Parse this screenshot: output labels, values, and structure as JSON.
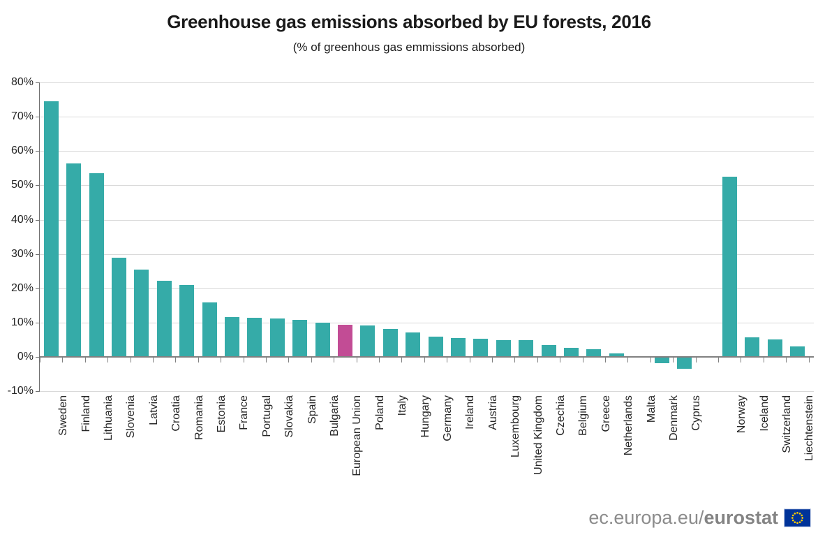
{
  "title": "Greenhouse gas emissions absorbed by EU forests, 2016",
  "subtitle": "(% of greenhous gas emmissions absorbed)",
  "footer": {
    "url_regular": "ec.europa.eu/",
    "url_bold": "eurostat",
    "flag_icon": "eu-flag-icon"
  },
  "colors": {
    "bar": "#35aba8",
    "highlight": "#c24c95",
    "grid": "#d9d9d9",
    "axis": "#808080",
    "text": "#262626",
    "footer_text": "#8c8c8c",
    "flag_blue": "#003399",
    "flag_star": "#ffcc00"
  },
  "chart_data": {
    "type": "bar",
    "title": "Greenhouse gas emissions absorbed by EU forests, 2016",
    "subtitle": "(% of greenhous gas emmissions absorbed)",
    "xlabel": "",
    "ylabel": "% of greenhous gas emmissions absorbed",
    "ylim": [
      -10,
      80
    ],
    "ytick_step": 10,
    "ytick_labels": [
      "80%",
      "70%",
      "60%",
      "50%",
      "40%",
      "30%",
      "20%",
      "10%",
      "0%",
      "-10%"
    ],
    "grid": true,
    "legend": false,
    "categories": [
      "Sweden",
      "Finland",
      "Lithuania",
      "Slovenia",
      "Latvia",
      "Croatia",
      "Romania",
      "Estonia",
      "France",
      "Portugal",
      "Slovakia",
      "Spain",
      "Bulgaria",
      "European Union",
      "Poland",
      "Italy",
      "Hungary",
      "Germany",
      "Ireland",
      "Austria",
      "Luxembourg",
      "United Kingdom",
      "Czechia",
      "Belgium",
      "Greece",
      "Netherlands",
      "Malta",
      "Denmark",
      "Cyprus",
      "Norway",
      "Iceland",
      "Switzerland",
      "Liechtenstein"
    ],
    "values": [
      74.5,
      56.3,
      53.5,
      29.0,
      25.5,
      22.3,
      21.0,
      15.9,
      11.7,
      11.4,
      11.3,
      10.7,
      9.9,
      9.3,
      9.1,
      8.1,
      7.2,
      6.0,
      5.6,
      5.3,
      4.9,
      4.8,
      3.4,
      2.7,
      2.3,
      1.1,
      0.0,
      -1.8,
      -3.4,
      52.5,
      5.8,
      5.0,
      3.1
    ],
    "highlight_category": "European Union",
    "gap_before_category": "Norway"
  }
}
